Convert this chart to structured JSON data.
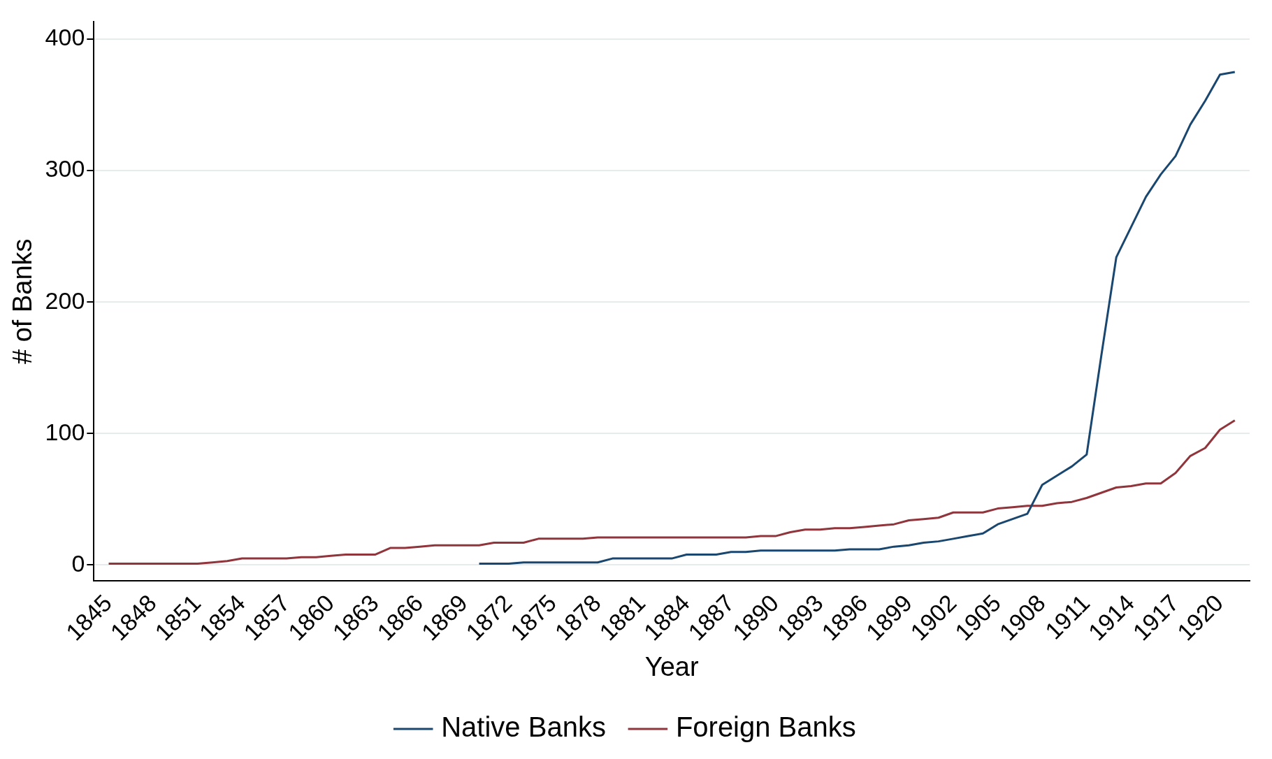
{
  "chart_data": {
    "type": "line",
    "xlabel": "Year",
    "ylabel": "# of Banks",
    "xlim": [
      1844,
      1922
    ],
    "xticks": [
      1845,
      1848,
      1851,
      1854,
      1857,
      1860,
      1863,
      1866,
      1869,
      1872,
      1875,
      1878,
      1881,
      1884,
      1887,
      1890,
      1893,
      1896,
      1899,
      1902,
      1905,
      1908,
      1911,
      1914,
      1917,
      1920
    ],
    "ylim": [
      -12,
      413
    ],
    "yticks": [
      0,
      100,
      200,
      300,
      400
    ],
    "grid": "y",
    "legend": "bottom",
    "marker": "none",
    "line_style": "solid",
    "series": [
      {
        "name": "Native Banks",
        "color": "#1a476f",
        "x": [
          1870,
          1871,
          1872,
          1873,
          1874,
          1875,
          1876,
          1877,
          1878,
          1879,
          1880,
          1881,
          1882,
          1883,
          1884,
          1885,
          1886,
          1887,
          1888,
          1889,
          1890,
          1891,
          1892,
          1893,
          1894,
          1895,
          1896,
          1897,
          1898,
          1899,
          1900,
          1901,
          1902,
          1903,
          1904,
          1905,
          1906,
          1907,
          1908,
          1909,
          1910,
          1911,
          1912,
          1913,
          1914,
          1915,
          1916,
          1917,
          1918,
          1919,
          1920,
          1921
        ],
        "values": [
          1,
          1,
          1,
          2,
          2,
          2,
          2,
          2,
          2,
          5,
          5,
          5,
          5,
          5,
          8,
          8,
          8,
          10,
          10,
          11,
          11,
          11,
          11,
          11,
          11,
          12,
          12,
          12,
          14,
          15,
          17,
          18,
          20,
          22,
          24,
          31,
          35,
          39,
          61,
          68,
          75,
          84,
          160,
          234,
          257,
          280,
          297,
          311,
          335,
          353,
          373,
          375
        ]
      },
      {
        "name": "Foreign Banks",
        "color": "#90353b",
        "x": [
          1845,
          1846,
          1847,
          1848,
          1849,
          1850,
          1851,
          1852,
          1853,
          1854,
          1855,
          1856,
          1857,
          1858,
          1859,
          1860,
          1861,
          1862,
          1863,
          1864,
          1865,
          1866,
          1867,
          1868,
          1869,
          1870,
          1871,
          1872,
          1873,
          1874,
          1875,
          1876,
          1877,
          1878,
          1879,
          1880,
          1881,
          1882,
          1883,
          1884,
          1885,
          1886,
          1887,
          1888,
          1889,
          1890,
          1891,
          1892,
          1893,
          1894,
          1895,
          1896,
          1897,
          1898,
          1899,
          1900,
          1901,
          1902,
          1903,
          1904,
          1905,
          1906,
          1907,
          1908,
          1909,
          1910,
          1911,
          1912,
          1913,
          1914,
          1915,
          1916,
          1917,
          1918,
          1919,
          1920,
          1921
        ],
        "values": [
          1,
          1,
          1,
          1,
          1,
          1,
          1,
          2,
          3,
          5,
          5,
          5,
          5,
          6,
          6,
          7,
          8,
          8,
          8,
          13,
          13,
          14,
          15,
          15,
          15,
          15,
          17,
          17,
          17,
          20,
          20,
          20,
          20,
          21,
          21,
          21,
          21,
          21,
          21,
          21,
          21,
          21,
          21,
          21,
          22,
          22,
          25,
          27,
          27,
          28,
          28,
          29,
          30,
          31,
          34,
          35,
          36,
          40,
          40,
          40,
          43,
          44,
          45,
          45,
          47,
          48,
          51,
          55,
          59,
          60,
          62,
          62,
          70,
          83,
          89,
          103,
          110
        ]
      }
    ]
  }
}
